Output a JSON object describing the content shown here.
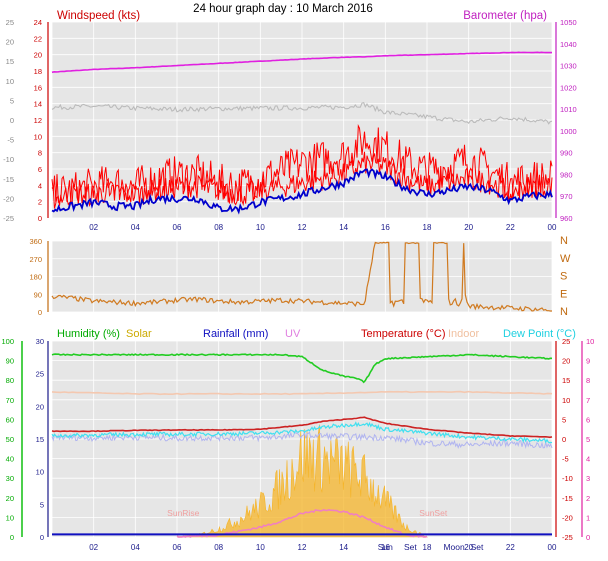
{
  "colors": {
    "wind": "#ff0000",
    "gust": "#ff0000",
    "avgwind": "#0000cc",
    "baro": "#e020e0",
    "grey": "#bbbbbb",
    "dir": "#d07a20",
    "humidity": "#22cc22",
    "solar": "#f5b428",
    "rain": "#1010c0",
    "uv": "#f080c0",
    "temp": "#cc2222",
    "indoor": "#f4c8b0",
    "dew": "#40e0f0",
    "dewlow": "#b0b4f0",
    "panel": "#e6e6e6",
    "grid": "#ffffff",
    "green_axis": "#00aa00",
    "axis_dark": "#1a1a8a"
  },
  "header": {
    "title": "24 hour graph day : 10 March 2016"
  },
  "chart_data": [
    {
      "type": "line",
      "id": "wind",
      "title": "24 hour graph day : 10 March 2016",
      "legend": [
        {
          "name": "Windspeed (kts)",
          "position": "top-left"
        },
        {
          "name": "Barometer (hpa)",
          "position": "top-right"
        }
      ],
      "x": [
        "02",
        "04",
        "06",
        "08",
        "10",
        "12",
        "14",
        "16",
        "18",
        "20",
        "22",
        "00"
      ],
      "ylim_left_outer": [
        -25,
        25
      ],
      "yticks_left_outer": [
        "25",
        "20",
        "15",
        "10",
        "5",
        "0",
        "-5",
        "-10",
        "-15",
        "-20",
        "-25"
      ],
      "ylim_left_inner": [
        0,
        25
      ],
      "yticks_left_inner": [
        "24",
        "22",
        "20",
        "18",
        "16",
        "14",
        "12",
        "10",
        "8",
        "6",
        "4",
        "2",
        "0"
      ],
      "ylim_right": [
        960,
        1050
      ],
      "yticks_right": [
        "1050",
        "1040",
        "1030",
        "1020",
        "1010",
        "1000",
        "990",
        "980",
        "970",
        "960"
      ],
      "series": [
        {
          "name": "Barometer (hpa)",
          "color_key": "baro",
          "x": [
            0,
            2,
            4,
            6,
            8,
            10,
            12,
            14,
            15,
            16,
            18,
            20,
            22,
            24
          ],
          "y": [
            1027,
            1028.2,
            1029,
            1030,
            1031,
            1032,
            1033,
            1033.8,
            1034,
            1034.5,
            1035,
            1035.5,
            1036,
            1036
          ]
        },
        {
          "name": "Average",
          "color_key": "grey",
          "x": [
            0,
            2,
            4,
            6,
            8,
            10,
            12,
            14,
            15,
            16,
            18,
            20,
            22,
            24
          ],
          "y": [
            3.2,
            3.5,
            3,
            2.7,
            2.9,
            3,
            3.1,
            3.3,
            4,
            2,
            0.8,
            -0.5,
            0.6,
            -0.6
          ]
        },
        {
          "name": "Gust",
          "color_key": "gust",
          "x": [
            0,
            1,
            2,
            3,
            4,
            5,
            6,
            7,
            8,
            9,
            10,
            11,
            12,
            13,
            14,
            15,
            16,
            17,
            18,
            19,
            20,
            21,
            22,
            23,
            24
          ],
          "y": [
            3,
            3.5,
            4,
            4.5,
            4,
            5,
            5.5,
            5.5,
            4.5,
            4,
            5,
            6,
            7,
            7.5,
            8,
            10,
            9,
            7,
            6,
            6.5,
            7.5,
            6,
            4.5,
            5,
            5
          ]
        },
        {
          "name": "Windspeed",
          "color_key": "wind",
          "x": [
            0,
            1,
            2,
            3,
            4,
            5,
            6,
            7,
            8,
            9,
            10,
            11,
            12,
            13,
            14,
            15,
            16,
            17,
            18,
            19,
            20,
            21,
            22,
            23,
            24
          ],
          "y": [
            2.5,
            3,
            3,
            3.5,
            3,
            3.5,
            4,
            4,
            3.5,
            3,
            3.5,
            4,
            4.5,
            5,
            5.5,
            7,
            6.5,
            5,
            4,
            4.5,
            5,
            4.5,
            3.5,
            4,
            4
          ]
        },
        {
          "name": "Average wind",
          "color_key": "avgwind",
          "x": [
            0,
            1,
            2,
            3,
            4,
            5,
            6,
            7,
            8,
            9,
            10,
            11,
            12,
            13,
            14,
            15,
            16,
            17,
            18,
            19,
            20,
            21,
            22,
            23,
            24
          ],
          "y": [
            1,
            1.5,
            2,
            1.5,
            1.5,
            2.5,
            2.5,
            2.5,
            1.2,
            1.2,
            2,
            2.5,
            3,
            3.8,
            4.5,
            6,
            5.2,
            3.8,
            3,
            3.5,
            4,
            3.5,
            2.2,
            2.8,
            3
          ]
        }
      ]
    },
    {
      "type": "line",
      "id": "direction",
      "x": [
        "02",
        "04",
        "06",
        "08",
        "10",
        "12",
        "14",
        "16",
        "18",
        "20",
        "22",
        "00"
      ],
      "ylim": [
        0,
        360
      ],
      "yticks_left": [
        "360",
        "270",
        "180",
        "90",
        "0"
      ],
      "yticks_right": [
        "N",
        "W",
        "S",
        "E",
        "N"
      ],
      "series": [
        {
          "name": "Wind direction",
          "color_key": "dir",
          "x": [
            0,
            1,
            2,
            3,
            4,
            5,
            6,
            7,
            8,
            9,
            10,
            11,
            12,
            13,
            14,
            15,
            15.5,
            16,
            17,
            18,
            19,
            20,
            21,
            22,
            23,
            24
          ],
          "y": [
            80,
            70,
            55,
            50,
            45,
            50,
            60,
            65,
            55,
            50,
            55,
            60,
            55,
            50,
            45,
            40,
            350,
            345,
            350,
            345,
            350,
            30,
            25,
            20,
            15,
            10
          ]
        }
      ]
    },
    {
      "type": "line",
      "id": "multi",
      "legend": [
        {
          "name": "Humidity (%)"
        },
        {
          "name": "Solar"
        },
        {
          "name": "Rainfall (mm)"
        },
        {
          "name": "UV"
        },
        {
          "name": "Temperature (°C)"
        },
        {
          "name": "Indoor"
        },
        {
          "name": "Dew Point (°C)"
        }
      ],
      "x": [
        "02",
        "04",
        "06",
        "08",
        "10",
        "12",
        "14",
        "16",
        "18",
        "20",
        "22",
        "00"
      ],
      "ylim_humidity": [
        0,
        100
      ],
      "yticks_humidity": [
        "100",
        "90",
        "80",
        "70",
        "60",
        "50",
        "40",
        "30",
        "20",
        "10",
        "0"
      ],
      "ylim_rain": [
        0,
        30
      ],
      "yticks_rain": [
        "30",
        "25",
        "20",
        "15",
        "10",
        "5",
        "0"
      ],
      "ylim_temp": [
        -25,
        25
      ],
      "yticks_temp": [
        "25",
        "20",
        "15",
        "10",
        "5",
        "0",
        "-5",
        "-10",
        "-15",
        "-20",
        "-25"
      ],
      "ylim_uv": [
        0,
        10
      ],
      "yticks_uv": [
        "10",
        "9",
        "8",
        "7",
        "6",
        "5",
        "4",
        "3",
        "2",
        "1",
        "0"
      ],
      "annotations": [
        {
          "text": "SunRise",
          "x": 6.3
        },
        {
          "text": "SunSet",
          "x": 18.3
        },
        {
          "text": "Sun",
          "x": 16
        },
        {
          "text": "Set",
          "x": 17.2
        },
        {
          "text": "Moon",
          "x": 19.3
        },
        {
          "text": "Set",
          "x": 20.4
        }
      ],
      "series": [
        {
          "name": "Humidity (%)",
          "color_key": "humidity",
          "x": [
            0,
            2,
            4,
            6,
            8,
            10,
            11,
            12,
            13,
            14,
            14.6,
            15,
            15.5,
            16,
            18,
            20,
            22,
            24
          ],
          "y": [
            93,
            93,
            93,
            93,
            93,
            93,
            93,
            92,
            85,
            82,
            81,
            79,
            88,
            91,
            92,
            93,
            92,
            91
          ]
        },
        {
          "name": "Indoor",
          "color_key": "indoor",
          "x": [
            0,
            4,
            8,
            12,
            16,
            20,
            24
          ],
          "y": [
            12,
            11.5,
            11.5,
            11.5,
            12,
            12,
            11.5
          ]
        },
        {
          "name": "Temperature (°C)",
          "color_key": "temp",
          "x": [
            0,
            2,
            4,
            6,
            8,
            10,
            12,
            13,
            14,
            15,
            16,
            18,
            20,
            22,
            24
          ],
          "y": [
            2,
            2,
            2.2,
            2.3,
            2.3,
            2.5,
            3.5,
            4.5,
            5,
            5.5,
            4,
            2.5,
            1.5,
            0.8,
            0.5
          ]
        },
        {
          "name": "Dew Point (°C)",
          "color_key": "dew",
          "x": [
            0,
            2,
            4,
            6,
            8,
            10,
            12,
            13,
            14,
            15,
            16,
            18,
            20,
            22,
            24
          ],
          "y": [
            0.8,
            1,
            1.2,
            1.2,
            1.3,
            1.5,
            2,
            3,
            3.5,
            4,
            2.5,
            1.5,
            0.5,
            0,
            -0.5
          ]
        },
        {
          "name": "Dew Point low",
          "color_key": "dewlow",
          "x": [
            0,
            2,
            4,
            6,
            8,
            10,
            12,
            14,
            16,
            18,
            20,
            22,
            24
          ],
          "y": [
            0.5,
            0.3,
            0.5,
            0.2,
            0.4,
            0.3,
            1,
            0.6,
            0.4,
            -1,
            -1.5,
            -1,
            -1.8
          ]
        },
        {
          "name": "Rainfall (mm)",
          "color_key": "rain",
          "x": [
            0,
            24
          ],
          "y": [
            0.4,
            0.4
          ]
        },
        {
          "name": "UV",
          "color_key": "uv",
          "x": [
            6,
            8,
            9,
            10,
            11,
            12,
            13,
            14,
            15,
            16,
            17,
            18
          ],
          "y": [
            0,
            0.1,
            0.3,
            0.5,
            0.8,
            1.2,
            1.4,
            1.3,
            1,
            0.5,
            0.1,
            0
          ]
        },
        {
          "name": "Solar",
          "color_key": "solar",
          "x": [
            6,
            7,
            8,
            9,
            10,
            11,
            12,
            13,
            14,
            15,
            16,
            17,
            18
          ],
          "y": [
            0,
            0.1,
            0.4,
            0.9,
            1.6,
            2.6,
            4.2,
            4,
            3.6,
            3,
            1.8,
            0.5,
            0
          ]
        }
      ]
    }
  ]
}
